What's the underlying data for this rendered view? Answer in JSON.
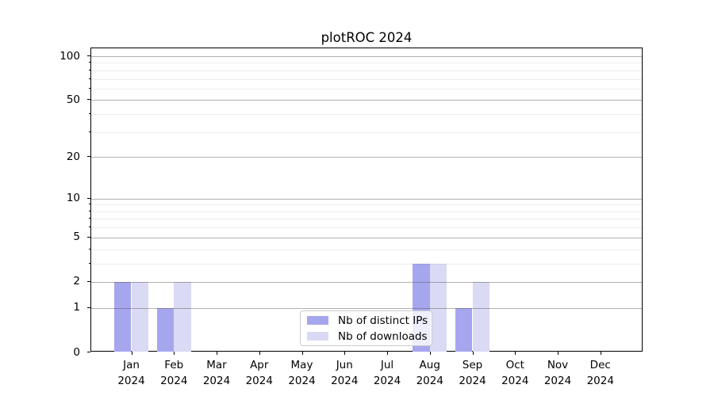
{
  "title": "plotROC 2024",
  "chart_data": {
    "type": "bar",
    "title": "plotROC 2024",
    "categories": [
      "Jan",
      "Feb",
      "Mar",
      "Apr",
      "May",
      "Jun",
      "Jul",
      "Aug",
      "Sep",
      "Oct",
      "Nov",
      "Dec"
    ],
    "category_year": "2024",
    "series": [
      {
        "name": "Nb of distinct IPs",
        "color": "#a6a6ef",
        "values": [
          2,
          1,
          0,
          0,
          0,
          0,
          0,
          3,
          1,
          0,
          0,
          0
        ]
      },
      {
        "name": "Nb of downloads",
        "color": "#dadaf5",
        "values": [
          2,
          2,
          0,
          0,
          0,
          0,
          0,
          3,
          2,
          0,
          0,
          0
        ]
      }
    ],
    "yscale": "log1p",
    "yticks": [
      0,
      1,
      2,
      5,
      10,
      20,
      50,
      100
    ],
    "yticks_minor": [
      3,
      4,
      6,
      7,
      8,
      9,
      30,
      40,
      60,
      70,
      80,
      90
    ],
    "ylim": [
      0,
      113
    ],
    "xlabel": "",
    "ylabel": "",
    "grid": "horizontal",
    "legend_position": "lower-center-inside"
  }
}
